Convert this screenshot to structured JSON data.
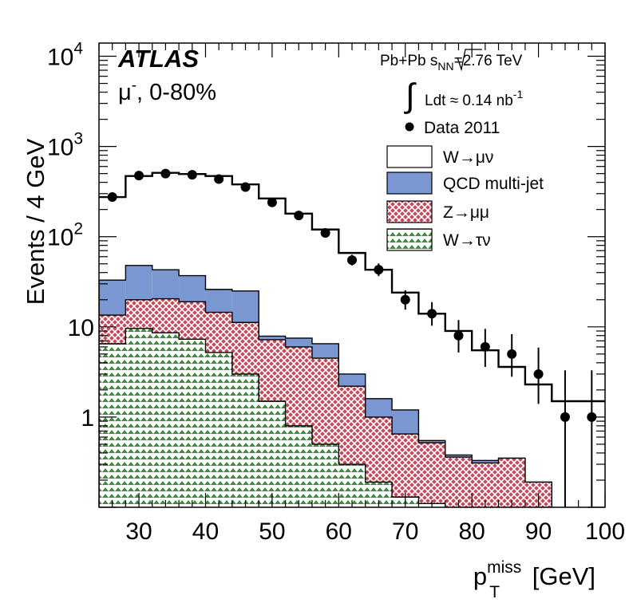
{
  "chart_data": {
    "type": "histogram-log",
    "xlabel": {
      "main": "p",
      "sup": "miss",
      "sub": "T",
      "unit": " [GeV]"
    },
    "ylabel": "Events / 4 GeV",
    "xlim": [
      24,
      100
    ],
    "ylim": [
      0.1,
      14000
    ],
    "yscale": "log",
    "x_ticks": [
      30,
      40,
      50,
      60,
      70,
      80,
      90,
      100
    ],
    "y_ticks": [
      {
        "value": 1,
        "base": "1",
        "exp": ""
      },
      {
        "value": 10,
        "base": "10",
        "exp": ""
      },
      {
        "value": 100,
        "base": "10",
        "exp": "2"
      },
      {
        "value": 1000,
        "base": "10",
        "exp": "3"
      },
      {
        "value": 10000,
        "base": "10",
        "exp": "4"
      }
    ],
    "experiment": "ATLAS",
    "subtitle": {
      "mu": "μ",
      "charge": "-",
      "centrality": ", 0-80%"
    },
    "collision": {
      "system": "Pb+Pb  ",
      "s": "s",
      "s_sub": "NN",
      "energy": "=2.76 TeV"
    },
    "luminosity": {
      "integral": "∫",
      "text": "Ldt ≈ 0.14 nb",
      "sup": "-1"
    },
    "legend": [
      {
        "key": "data",
        "label": "Data 2011"
      },
      {
        "key": "wmunu",
        "label": "W→μν"
      },
      {
        "key": "qcd",
        "label": "QCD multi-jet"
      },
      {
        "key": "zmumu",
        "label": "Z→μμ"
      },
      {
        "key": "wtaunu",
        "label": "W→τν"
      }
    ],
    "colors": {
      "qcd": "#7b97d2",
      "zmumu_bg": "#c2485a",
      "zmumu_hatch": "#ffffff",
      "wtaunu_bg": "#ffffff",
      "wtaunu_hatch": "#3f8a3f",
      "line": "#000000"
    },
    "bin_edges": [
      24,
      28,
      32,
      36,
      40,
      44,
      48,
      52,
      56,
      60,
      64,
      68,
      72,
      76,
      80,
      84,
      88,
      92,
      96,
      100
    ],
    "stack_totals": {
      "wtaunu": [
        6.5,
        9.6,
        8.6,
        7.3,
        5.2,
        3.0,
        1.5,
        0.8,
        0.5,
        0.3,
        0.19,
        0.13,
        0.11,
        0.09,
        0.08,
        0.07,
        0.06,
        0.05,
        0.05
      ],
      "zmumu": [
        13.5,
        20,
        20.5,
        19,
        14.5,
        11.2,
        7.2,
        6.0,
        4.5,
        2.2,
        1.0,
        0.65,
        0.52,
        0.36,
        0.31,
        0.35,
        0.19,
        0.05,
        0.05
      ],
      "qcd": [
        33,
        48,
        43,
        37,
        26,
        25,
        7.9,
        7.5,
        6.5,
        3.0,
        1.6,
        1.2,
        0.55,
        0.38,
        0.33,
        0.35,
        0.19,
        0.05,
        0.05
      ],
      "wmunu": [
        275,
        470,
        510,
        495,
        470,
        380,
        265,
        180,
        120,
        66,
        43,
        24,
        14,
        9,
        5.5,
        3.6,
        2.3,
        1.5,
        1.5
      ]
    },
    "data_points": [
      {
        "x": 26,
        "y": 275,
        "err_lo": 16,
        "err_hi": 17
      },
      {
        "x": 30,
        "y": 475,
        "err_lo": 21,
        "err_hi": 22
      },
      {
        "x": 34,
        "y": 500,
        "err_lo": 22,
        "err_hi": 23
      },
      {
        "x": 38,
        "y": 485,
        "err_lo": 22,
        "err_hi": 22
      },
      {
        "x": 42,
        "y": 435,
        "err_lo": 21,
        "err_hi": 21
      },
      {
        "x": 46,
        "y": 355,
        "err_lo": 19,
        "err_hi": 19
      },
      {
        "x": 50,
        "y": 240,
        "err_lo": 15,
        "err_hi": 16
      },
      {
        "x": 54,
        "y": 172,
        "err_lo": 13,
        "err_hi": 14
      },
      {
        "x": 58,
        "y": 110,
        "err_lo": 10,
        "err_hi": 11
      },
      {
        "x": 62,
        "y": 55,
        "err_lo": 7,
        "err_hi": 8
      },
      {
        "x": 66,
        "y": 43,
        "err_lo": 6.5,
        "err_hi": 7.5
      },
      {
        "x": 70,
        "y": 20,
        "err_lo": 4.5,
        "err_hi": 5.5
      },
      {
        "x": 74,
        "y": 14,
        "err_lo": 3.7,
        "err_hi": 4.8
      },
      {
        "x": 78,
        "y": 8,
        "err_lo": 2.8,
        "err_hi": 3.9
      },
      {
        "x": 82,
        "y": 6,
        "err_lo": 2.4,
        "err_hi": 3.5
      },
      {
        "x": 86,
        "y": 5,
        "err_lo": 2.2,
        "err_hi": 3.3
      },
      {
        "x": 90,
        "y": 3,
        "err_lo": 1.6,
        "err_hi": 2.9
      },
      {
        "x": 94,
        "y": 1,
        "err_lo": 0.95,
        "err_hi": 2.3
      },
      {
        "x": 98,
        "y": 1,
        "err_lo": 0.95,
        "err_hi": 2.3
      }
    ]
  }
}
